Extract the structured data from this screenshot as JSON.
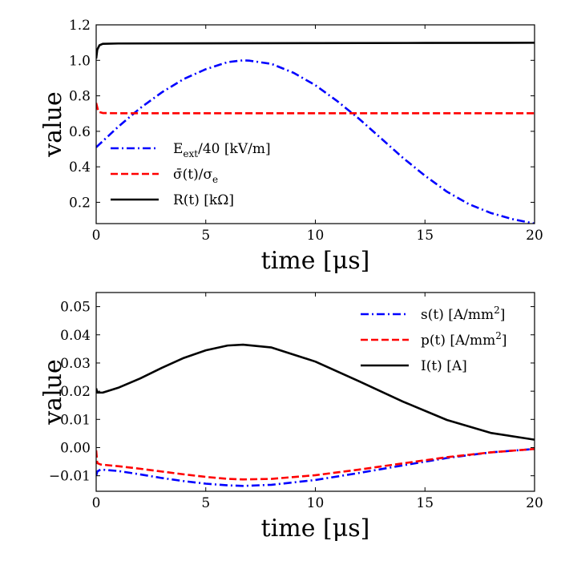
{
  "chart_data": [
    {
      "type": "line",
      "xlabel": "time [μs]",
      "ylabel": "value",
      "xlim": [
        0,
        20
      ],
      "ylim": [
        0.08,
        1.2
      ],
      "xticks": [
        0,
        5,
        10,
        15,
        20
      ],
      "xtick_labels": [
        "0",
        "5",
        "10",
        "15",
        "20"
      ],
      "yticks": [
        0.2,
        0.4,
        0.6,
        0.8,
        1.0,
        1.2
      ],
      "ytick_labels": [
        "0.2",
        "0.4",
        "0.6",
        "0.8",
        "1.0",
        "1.2"
      ],
      "grid": false,
      "legend_position": "lower-left",
      "series": [
        {
          "name": "E_ext/40 [kV/m]",
          "label": "Eext/40 [kV/m]",
          "color": "#0000ff",
          "style": "dashdot",
          "x": [
            0,
            1,
            2,
            3,
            4,
            5,
            6,
            6.7,
            7,
            8,
            9,
            10,
            11,
            12,
            13,
            14,
            15,
            16,
            17,
            18,
            19,
            20
          ],
          "y": [
            0.51,
            0.625,
            0.73,
            0.82,
            0.895,
            0.95,
            0.99,
            1.0,
            0.998,
            0.98,
            0.93,
            0.86,
            0.77,
            0.67,
            0.56,
            0.45,
            0.35,
            0.26,
            0.19,
            0.14,
            0.105,
            0.08
          ]
        },
        {
          "name": "sigma_bar(t)/sigma_e",
          "label": "σ̄(t)/σe",
          "color": "#ff0000",
          "style": "dashed",
          "x": [
            0,
            0.1,
            0.3,
            1,
            5,
            10,
            15,
            20
          ],
          "y": [
            0.76,
            0.71,
            0.703,
            0.702,
            0.702,
            0.702,
            0.702,
            0.702
          ]
        },
        {
          "name": "R(t) [kOhm]",
          "label": "R(t) [kΩ]",
          "color": "#000000",
          "style": "solid",
          "x": [
            0,
            0.05,
            0.15,
            0.3,
            1,
            5,
            10,
            15,
            20
          ],
          "y": [
            1.01,
            1.06,
            1.085,
            1.093,
            1.095,
            1.096,
            1.097,
            1.098,
            1.099
          ]
        }
      ]
    },
    {
      "type": "line",
      "xlabel": "time [μs]",
      "ylabel": "value",
      "xlim": [
        0,
        20
      ],
      "ylim": [
        -0.0155,
        0.055
      ],
      "xticks": [
        0,
        5,
        10,
        15,
        20
      ],
      "xtick_labels": [
        "0",
        "5",
        "10",
        "15",
        "20"
      ],
      "yticks": [
        -0.01,
        0.0,
        0.01,
        0.02,
        0.03,
        0.04,
        0.05
      ],
      "ytick_labels": [
        "−0.01",
        "0.00",
        "0.01",
        "0.02",
        "0.03",
        "0.04",
        "0.05"
      ],
      "grid": false,
      "legend_position": "upper-right",
      "series": [
        {
          "name": "s(t) [A/mm^2]",
          "label": "s(t) [A/mm2]",
          "color": "#0000ff",
          "style": "dashdot",
          "x": [
            0,
            0.05,
            0.2,
            1,
            2,
            3,
            4,
            5,
            6,
            6.7,
            8,
            10,
            12,
            14,
            16,
            18,
            20
          ],
          "y": [
            -0.01,
            -0.0085,
            -0.0078,
            -0.0083,
            -0.0095,
            -0.0108,
            -0.0119,
            -0.0128,
            -0.0134,
            -0.0136,
            -0.0132,
            -0.0115,
            -0.009,
            -0.0063,
            -0.0037,
            -0.0017,
            -0.0005
          ]
        },
        {
          "name": "p(t) [A/mm^2]",
          "label": "p(t) [A/mm2]",
          "color": "#ff0000",
          "style": "dashed",
          "x": [
            0,
            0.05,
            0.2,
            1,
            2,
            3,
            4,
            5,
            6,
            6.7,
            8,
            10,
            12,
            14,
            16,
            18,
            20
          ],
          "y": [
            -0.001,
            -0.0055,
            -0.006,
            -0.0066,
            -0.0075,
            -0.0085,
            -0.0095,
            -0.0104,
            -0.0111,
            -0.0113,
            -0.0111,
            -0.0098,
            -0.0078,
            -0.0056,
            -0.0034,
            -0.0017,
            -0.0005
          ]
        },
        {
          "name": "I(t) [A]",
          "label": "I(t) [A]",
          "color": "#000000",
          "style": "solid",
          "x": [
            0,
            0.05,
            0.3,
            1,
            2,
            3,
            4,
            5,
            6,
            6.7,
            8,
            10,
            12,
            14,
            16,
            18,
            20
          ],
          "y": [
            0.021,
            0.0195,
            0.0195,
            0.0212,
            0.0245,
            0.0283,
            0.0318,
            0.0345,
            0.0362,
            0.0365,
            0.0355,
            0.0305,
            0.0235,
            0.0163,
            0.0098,
            0.0052,
            0.0028
          ]
        }
      ]
    }
  ]
}
